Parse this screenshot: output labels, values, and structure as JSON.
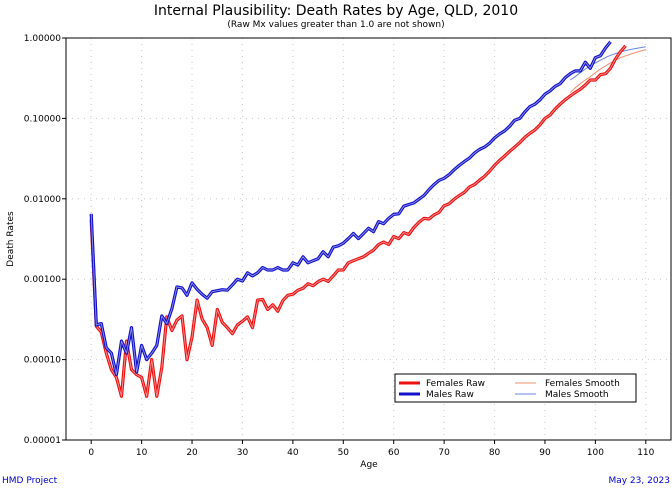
{
  "footer": {
    "left": "HMD Project",
    "right": "May 23, 2023"
  },
  "chart_data": {
    "type": "line",
    "title": "Internal Plausibility: Death Rates by Age, QLD, 2010",
    "subtitle": "(Raw Mx values greater than 1.0 are not shown)",
    "xlabel": "Age",
    "ylabel": "Death Rates",
    "xlim": [
      -5,
      115
    ],
    "ylim": [
      1e-05,
      1.0
    ],
    "yscale": "log",
    "xticks": [
      0,
      10,
      20,
      30,
      40,
      50,
      60,
      70,
      80,
      90,
      100,
      110
    ],
    "xtick_labels": [
      "0",
      "10",
      "20",
      "30",
      "40",
      "50",
      "60",
      "70",
      "80",
      "90",
      "100",
      "110"
    ],
    "yticks": [
      1e-05,
      0.0001,
      0.001,
      0.01,
      0.1,
      1.0
    ],
    "ytick_labels": [
      "0.00001",
      "0.00010",
      "0.00100",
      "0.01000",
      "0.10000",
      "1.00000"
    ],
    "grid": true,
    "legend_position": "bottom-right",
    "legend": [
      {
        "name": "Females Raw",
        "color": "#ee1111",
        "style": "raw"
      },
      {
        "name": "Females Smooth",
        "color": "#f0906e",
        "style": "smooth"
      },
      {
        "name": "Males Raw",
        "color": "#1111cc",
        "style": "raw"
      },
      {
        "name": "Males Smooth",
        "color": "#6c86dc",
        "style": "smooth"
      }
    ],
    "series": [
      {
        "name": "Females Raw",
        "color": "#ee1111",
        "style": "raw",
        "x": [
          0,
          1,
          2,
          3,
          4,
          5,
          6,
          7,
          8,
          9,
          10,
          11,
          12,
          13,
          14,
          15,
          16,
          17,
          18,
          19,
          20,
          21,
          22,
          23,
          24,
          25,
          26,
          27,
          28,
          29,
          30,
          31,
          32,
          33,
          34,
          35,
          36,
          37,
          38,
          39,
          40,
          41,
          42,
          43,
          44,
          45,
          46,
          47,
          48,
          49,
          50,
          51,
          52,
          53,
          54,
          55,
          56,
          57,
          58,
          59,
          60,
          61,
          62,
          63,
          64,
          65,
          66,
          67,
          68,
          69,
          70,
          71,
          72,
          73,
          74,
          75,
          76,
          77,
          78,
          79,
          80,
          81,
          82,
          83,
          84,
          85,
          86,
          87,
          88,
          89,
          90,
          91,
          92,
          93,
          94,
          95,
          96,
          97,
          98,
          99,
          100,
          101,
          102,
          103,
          104,
          105,
          106
        ],
        "y": [
          0.0055,
          0.00026,
          0.00022,
          0.00012,
          7.5e-05,
          6e-05,
          3.5e-05,
          0.00017,
          7.5e-05,
          6.5e-05,
          6e-05,
          3.5e-05,
          0.0001,
          3.5e-05,
          8e-05,
          0.00034,
          0.00023,
          0.00031,
          0.00035,
          0.0001,
          0.00019,
          0.00055,
          0.00032,
          0.00025,
          0.00015,
          0.00042,
          0.00029,
          0.00025,
          0.00021,
          0.00027,
          0.0003,
          0.00034,
          0.00025,
          0.00055,
          0.00056,
          0.00042,
          0.00048,
          0.0004,
          0.00054,
          0.00063,
          0.00065,
          0.00073,
          0.00077,
          0.00088,
          0.00083,
          0.00093,
          0.001,
          0.00094,
          0.0011,
          0.0013,
          0.0013,
          0.0016,
          0.0017,
          0.0018,
          0.0019,
          0.0021,
          0.0023,
          0.0027,
          0.0029,
          0.0027,
          0.0034,
          0.0032,
          0.0038,
          0.0036,
          0.0044,
          0.0051,
          0.0057,
          0.0056,
          0.0063,
          0.0068,
          0.0082,
          0.0087,
          0.0099,
          0.011,
          0.012,
          0.014,
          0.015,
          0.017,
          0.019,
          0.022,
          0.026,
          0.03,
          0.034,
          0.039,
          0.044,
          0.05,
          0.058,
          0.065,
          0.072,
          0.083,
          0.1,
          0.11,
          0.13,
          0.15,
          0.17,
          0.19,
          0.21,
          0.23,
          0.26,
          0.3,
          0.3,
          0.35,
          0.36,
          0.42,
          0.55,
          0.68,
          0.8
        ]
      },
      {
        "name": "Males Raw",
        "color": "#1111cc",
        "style": "raw",
        "x": [
          0,
          1,
          2,
          3,
          4,
          5,
          6,
          7,
          8,
          9,
          10,
          11,
          12,
          13,
          14,
          15,
          16,
          17,
          18,
          19,
          20,
          21,
          22,
          23,
          24,
          25,
          26,
          27,
          28,
          29,
          30,
          31,
          32,
          33,
          34,
          35,
          36,
          37,
          38,
          39,
          40,
          41,
          42,
          43,
          44,
          45,
          46,
          47,
          48,
          49,
          50,
          51,
          52,
          53,
          54,
          55,
          56,
          57,
          58,
          59,
          60,
          61,
          62,
          63,
          64,
          65,
          66,
          67,
          68,
          69,
          70,
          71,
          72,
          73,
          74,
          75,
          76,
          77,
          78,
          79,
          80,
          81,
          82,
          83,
          84,
          85,
          86,
          87,
          88,
          89,
          90,
          91,
          92,
          93,
          94,
          95,
          96,
          97,
          98,
          99,
          100,
          101,
          102,
          103
        ],
        "y": [
          0.0065,
          0.00027,
          0.00028,
          0.00014,
          0.00012,
          6.5e-05,
          0.00017,
          0.00012,
          0.00025,
          7e-05,
          0.00015,
          0.0001,
          0.00012,
          0.00015,
          0.00035,
          0.00028,
          0.00043,
          0.0008,
          0.00078,
          0.00063,
          0.0009,
          0.00075,
          0.00065,
          0.00058,
          0.0007,
          0.00072,
          0.00074,
          0.00073,
          0.00085,
          0.001,
          0.00095,
          0.0012,
          0.0011,
          0.0012,
          0.0014,
          0.0013,
          0.0013,
          0.0014,
          0.0013,
          0.0013,
          0.0016,
          0.0015,
          0.0019,
          0.0016,
          0.0017,
          0.0018,
          0.0022,
          0.0019,
          0.0025,
          0.0026,
          0.0028,
          0.0032,
          0.0037,
          0.0032,
          0.0037,
          0.0043,
          0.0039,
          0.0052,
          0.0049,
          0.0057,
          0.0064,
          0.0065,
          0.0081,
          0.0085,
          0.0089,
          0.0099,
          0.011,
          0.013,
          0.015,
          0.017,
          0.018,
          0.02,
          0.023,
          0.026,
          0.029,
          0.032,
          0.037,
          0.041,
          0.044,
          0.049,
          0.057,
          0.064,
          0.07,
          0.08,
          0.095,
          0.1,
          0.12,
          0.14,
          0.15,
          0.17,
          0.2,
          0.22,
          0.25,
          0.27,
          0.32,
          0.36,
          0.39,
          0.39,
          0.5,
          0.42,
          0.57,
          0.6,
          0.75,
          0.9
        ]
      },
      {
        "name": "Females Smooth",
        "color": "#f0906e",
        "style": "smooth",
        "x": [
          95,
          96,
          97,
          98,
          99,
          100,
          101,
          102,
          103,
          104,
          105,
          106,
          107,
          108,
          109,
          110
        ],
        "y": [
          0.21,
          0.24,
          0.27,
          0.3,
          0.33,
          0.37,
          0.41,
          0.45,
          0.49,
          0.53,
          0.57,
          0.6,
          0.63,
          0.66,
          0.69,
          0.72
        ]
      },
      {
        "name": "Males Smooth",
        "color": "#6c86dc",
        "style": "smooth",
        "x": [
          95,
          96,
          97,
          98,
          99,
          100,
          101,
          102,
          103,
          104,
          105,
          106,
          107,
          108,
          109,
          110
        ],
        "y": [
          0.3,
          0.33,
          0.37,
          0.41,
          0.45,
          0.49,
          0.53,
          0.57,
          0.61,
          0.64,
          0.67,
          0.7,
          0.72,
          0.74,
          0.76,
          0.78
        ]
      }
    ]
  }
}
